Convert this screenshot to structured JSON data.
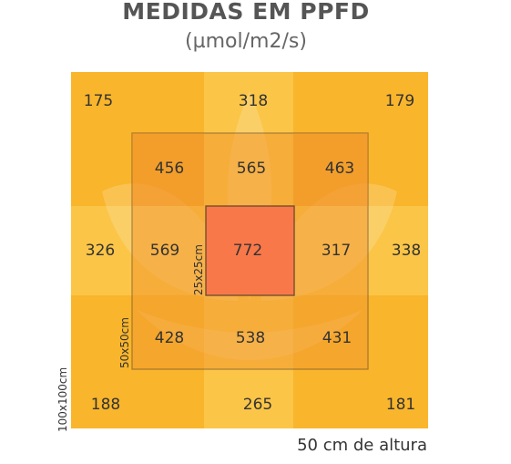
{
  "title": "MEDIDAS EM PPFD",
  "subtitle": "(µmol/m2/s)",
  "caption": "50 cm de altura",
  "zones": {
    "outer_label": "100x100cm",
    "middle_label": "50x50cm",
    "inner_label": "25x25cm"
  },
  "colors": {
    "outer": "#f9b52b",
    "middle": "#f39a2e",
    "center": "#f8784a",
    "frame": "#6b4a2c"
  },
  "readings": {
    "r1": [
      "175",
      "318",
      "179"
    ],
    "r2": [
      "456",
      "565",
      "463"
    ],
    "r3": [
      "326",
      "569",
      "772",
      "317",
      "338"
    ],
    "r4": [
      "428",
      "538",
      "431"
    ],
    "r5": [
      "188",
      "265",
      "181"
    ]
  }
}
